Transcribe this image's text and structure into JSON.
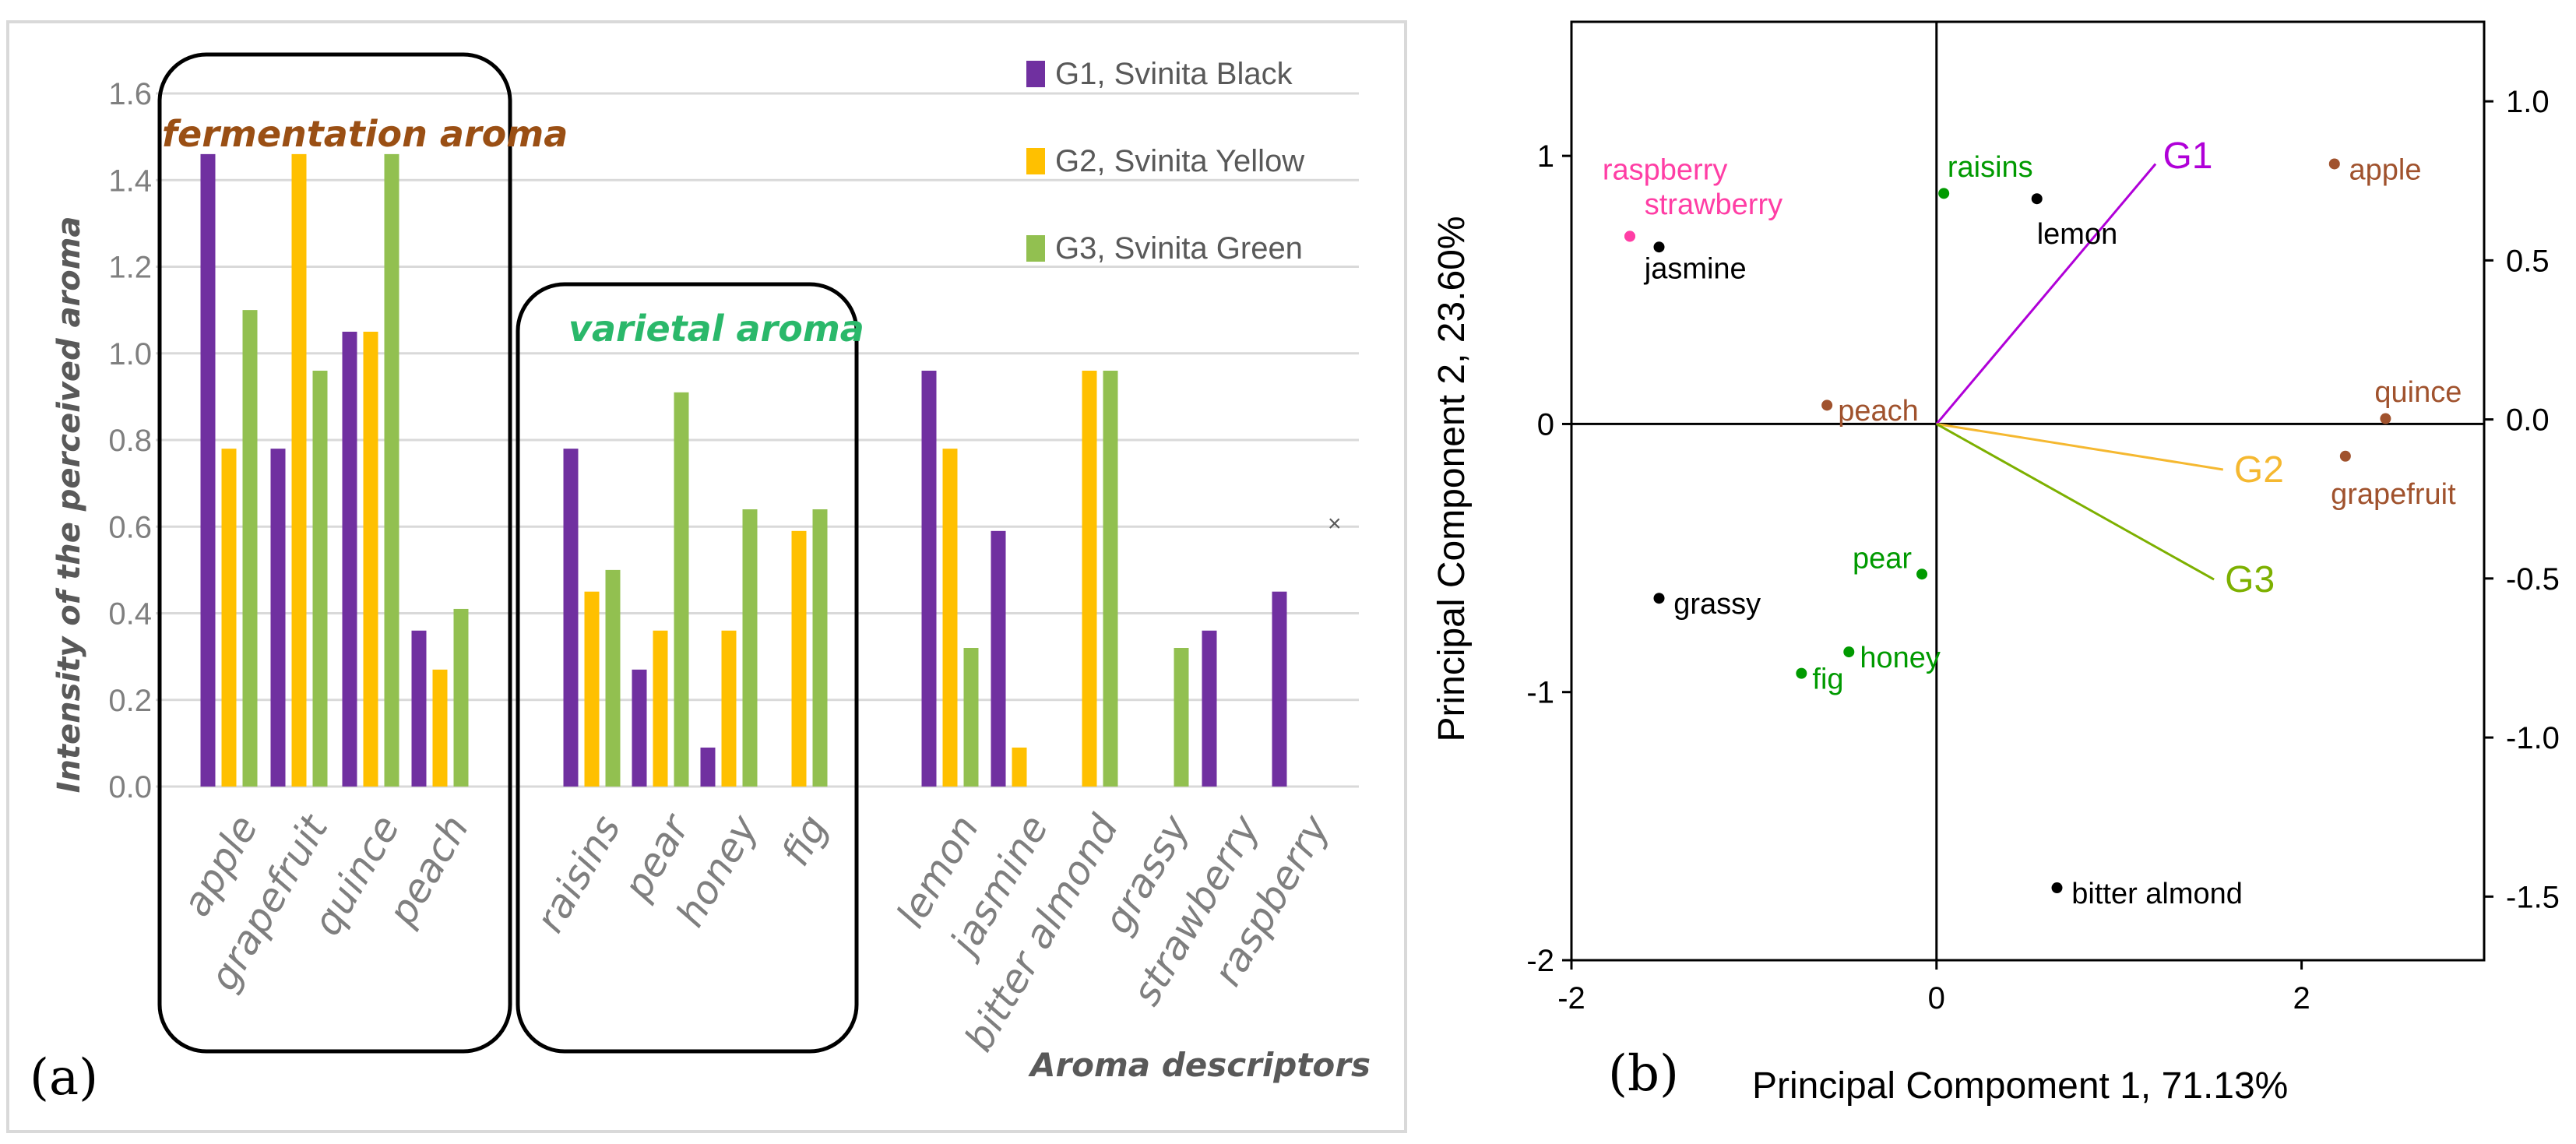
{
  "chart_data": [
    {
      "panel": "(a)",
      "type": "bar",
      "ylabel": "Intensity of the perceived aroma",
      "xlabel": "Aroma descriptors",
      "ylim": [
        0,
        1.6
      ],
      "yticks": [
        "0.0",
        "0.2",
        "0.4",
        "0.6",
        "0.8",
        "1.0",
        "1.2",
        "1.4",
        "1.6"
      ],
      "categories": [
        "apple",
        "grapefruit",
        "quince",
        "peach",
        "raisins",
        "pear",
        "honey",
        "fig",
        "lemon",
        "jasmine",
        "bitter almond",
        "grassy",
        "strawberry",
        "raspberry"
      ],
      "series": [
        {
          "name": "G1, Svinita Black",
          "color": "#7030a0",
          "values": [
            1.46,
            0.78,
            1.05,
            0.36,
            0.78,
            0.27,
            0.09,
            0,
            0.96,
            0.59,
            0,
            0,
            0.36,
            0.45
          ]
        },
        {
          "name": "G2, Svinita Yellow",
          "color": "#ffc000",
          "values": [
            0.78,
            1.46,
            1.05,
            0.27,
            0.45,
            0.36,
            0.36,
            0.59,
            0.78,
            0.09,
            0.96,
            0,
            0,
            0
          ]
        },
        {
          "name": "G3, Svinita Green",
          "color": "#92c050",
          "values": [
            1.1,
            0.96,
            1.46,
            0.41,
            0.5,
            0.91,
            0.64,
            0.64,
            0.32,
            0,
            0.96,
            0.32,
            0,
            0
          ]
        }
      ],
      "groups": [
        {
          "label": "fermentation aroma",
          "color": "#9a4f14"
        },
        {
          "label": "varietal aroma",
          "color": "#2ab86a"
        }
      ],
      "annotation": "×"
    },
    {
      "panel": "(b)",
      "type": "scatter",
      "xlabel": "Principal Compoment 1, 71.13%",
      "ylabel": "Principal Component 2, 23.60%",
      "xlim": [
        -2,
        3
      ],
      "ylim": [
        -2,
        1.5
      ],
      "xticks": [
        {
          "v": -2,
          "t": "-2"
        },
        {
          "v": 0,
          "t": "0"
        },
        {
          "v": 2,
          "t": "2"
        }
      ],
      "yticks": [
        {
          "v": -2,
          "t": "-2"
        },
        {
          "v": -1,
          "t": "-1"
        },
        {
          "v": 0,
          "t": "0"
        },
        {
          "v": 1,
          "t": "1"
        }
      ],
      "y2lim": [
        -1.7,
        1.25
      ],
      "y2ticks": [
        {
          "v": -1.5,
          "t": "-1.5"
        },
        {
          "v": -1.0,
          "t": "-1.0"
        },
        {
          "v": -0.5,
          "t": "-0.5"
        },
        {
          "v": 0.0,
          "t": "0.0"
        },
        {
          "v": 0.5,
          "t": "0.5"
        },
        {
          "v": 1.0,
          "t": "1.0"
        }
      ],
      "points": [
        {
          "label": "raspberry",
          "x": -1.68,
          "y": 0.7,
          "color": "#ff3ea5",
          "dx": -0.15,
          "dy": 0.25
        },
        {
          "label": "strawberry",
          "x": -1.68,
          "y": 0.7,
          "color": "#ff3ea5",
          "dx": 0.08,
          "dy": 0.12
        },
        {
          "label": "jasmine",
          "x": -1.52,
          "y": 0.66,
          "color": "#000000",
          "dx": -0.08,
          "dy": -0.08
        },
        {
          "label": "raisins",
          "x": 0.04,
          "y": 0.86,
          "color": "#009a00",
          "dx": 0.02,
          "dy": 0.1
        },
        {
          "label": "lemon",
          "x": 0.55,
          "y": 0.84,
          "color": "#000000",
          "dx": 0.0,
          "dy": -0.13
        },
        {
          "label": "apple",
          "x": 2.18,
          "y": 0.97,
          "color": "#a0522d",
          "dx": 0.08,
          "dy": -0.02
        },
        {
          "label": "peach",
          "x": -0.6,
          "y": 0.07,
          "color": "#a0522d",
          "dx": 0.06,
          "dy": -0.02
        },
        {
          "label": "quince",
          "x": 2.46,
          "y": 0.02,
          "color": "#a0522d",
          "dx": -0.06,
          "dy": 0.1
        },
        {
          "label": "grapefruit",
          "x": 2.24,
          "y": -0.12,
          "color": "#a0522d",
          "dx": -0.08,
          "dy": -0.14
        },
        {
          "label": "pear",
          "x": -0.08,
          "y": -0.56,
          "color": "#009a00",
          "dx": -0.38,
          "dy": 0.06
        },
        {
          "label": "grassy",
          "x": -1.52,
          "y": -0.65,
          "color": "#000000",
          "dx": 0.08,
          "dy": -0.02
        },
        {
          "label": "honey",
          "x": -0.48,
          "y": -0.85,
          "color": "#009a00",
          "dx": 0.06,
          "dy": -0.02
        },
        {
          "label": "fig",
          "x": -0.74,
          "y": -0.93,
          "color": "#009a00",
          "dx": 0.06,
          "dy": -0.02
        },
        {
          "label": "bitter almond",
          "x": 0.66,
          "y": -1.73,
          "color": "#000000",
          "dx": 0.08,
          "dy": -0.02
        }
      ],
      "vectors": [
        {
          "label": "G1",
          "x": 1.2,
          "y": 0.97,
          "color": "#b000d8",
          "dx": 0.04,
          "dy": 0.03
        },
        {
          "label": "G2",
          "x": 1.57,
          "y": -0.17,
          "color": "#f5b830",
          "dx": 0.06,
          "dy": 0.0
        },
        {
          "label": "G3",
          "x": 1.52,
          "y": -0.58,
          "color": "#7db000",
          "dx": 0.06,
          "dy": 0.0
        }
      ]
    }
  ]
}
